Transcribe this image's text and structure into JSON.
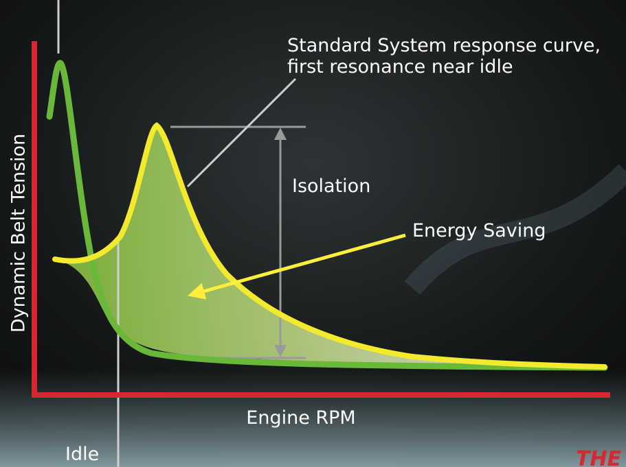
{
  "axes": {
    "y_label": "Dynamic Belt Tension",
    "x_label": "Engine RPM"
  },
  "annotations": {
    "standard_line1": "Standard System response curve,",
    "standard_line2": "first resonance near idle",
    "isolation": "Isolation",
    "energy_saving": "Energy Saving",
    "idle": "Idle"
  },
  "logo": "THE"
}
